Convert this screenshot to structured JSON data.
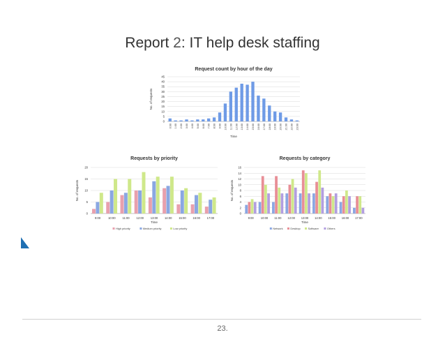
{
  "slide": {
    "title_prefix": "Report ",
    "title_number": "2",
    "title_rest": ": IT help desk staffing",
    "page_number": "23."
  },
  "chart_data": [
    {
      "type": "bar",
      "title": "Request count by hour of the day",
      "xlabel": "Time",
      "ylabel": "No. of requests",
      "ylim": [
        0,
        45
      ],
      "yticks": [
        0,
        5,
        10,
        15,
        20,
        25,
        30,
        35,
        40,
        45
      ],
      "grid": true,
      "colors": [
        "#6f9be6"
      ],
      "categories": [
        "0:00",
        "1:00",
        "2:00",
        "3:00",
        "4:00",
        "5:00",
        "6:00",
        "7:00",
        "8:00",
        "9:00",
        "10:00",
        "11:00",
        "12:00",
        "13:00",
        "14:00",
        "15:00",
        "16:00",
        "17:00",
        "18:00",
        "19:00",
        "20:00",
        "21:00",
        "22:00",
        "23:00"
      ],
      "series": [
        {
          "values": [
            3,
            1,
            1,
            2,
            1,
            2,
            2,
            3,
            4,
            9,
            18,
            30,
            34,
            38,
            37,
            40,
            26,
            23,
            16,
            10,
            9,
            4,
            2,
            1
          ]
        }
      ]
    },
    {
      "type": "bar",
      "title": "Requests by priority",
      "xlabel": "Time",
      "ylabel": "No. of requests",
      "ylim": [
        0,
        20
      ],
      "yticks": [
        0,
        5,
        10,
        15,
        20
      ],
      "grid": true,
      "legend": "bottom",
      "colors": [
        "#e8a0ad",
        "#8aa7e2",
        "#cfe88a"
      ],
      "categories": [
        "9:00",
        "10:00",
        "11:00",
        "12:00",
        "13:00",
        "14:00",
        "15:00",
        "16:00",
        "17:00"
      ],
      "series": [
        {
          "name": "High priority",
          "values": [
            2,
            5,
            8,
            10,
            7,
            11,
            4,
            4,
            3
          ]
        },
        {
          "name": "Medium priority",
          "values": [
            5,
            10,
            9,
            10,
            14,
            12,
            10,
            8,
            6
          ]
        },
        {
          "name": "Low priority",
          "values": [
            9,
            15,
            15,
            18,
            16,
            16,
            11,
            9,
            7
          ]
        }
      ]
    },
    {
      "type": "bar",
      "title": "Requests by category",
      "xlabel": "Time",
      "ylabel": "No. of requests",
      "ylim": [
        0,
        16
      ],
      "yticks": [
        0,
        2,
        4,
        6,
        8,
        10,
        12,
        14,
        16
      ],
      "grid": true,
      "legend": "bottom",
      "colors": [
        "#8aa7e2",
        "#e88e96",
        "#cfe88a",
        "#b29ee0"
      ],
      "categories": [
        "9:00",
        "10:00",
        "11:00",
        "12:00",
        "13:00",
        "14:00",
        "15:00",
        "16:00",
        "17:00"
      ],
      "series": [
        {
          "name": "Network",
          "values": [
            3,
            4,
            4,
            7,
            7,
            7,
            6,
            4,
            2
          ]
        },
        {
          "name": "Desktop",
          "values": [
            4,
            13,
            13,
            10,
            15,
            11,
            7,
            6,
            6
          ]
        },
        {
          "name": "Software",
          "values": [
            5,
            10,
            9,
            12,
            14,
            15,
            6,
            8,
            6
          ]
        },
        {
          "name": "Others",
          "values": [
            4,
            7,
            7,
            9,
            7,
            9,
            7,
            6,
            2
          ]
        }
      ]
    }
  ]
}
